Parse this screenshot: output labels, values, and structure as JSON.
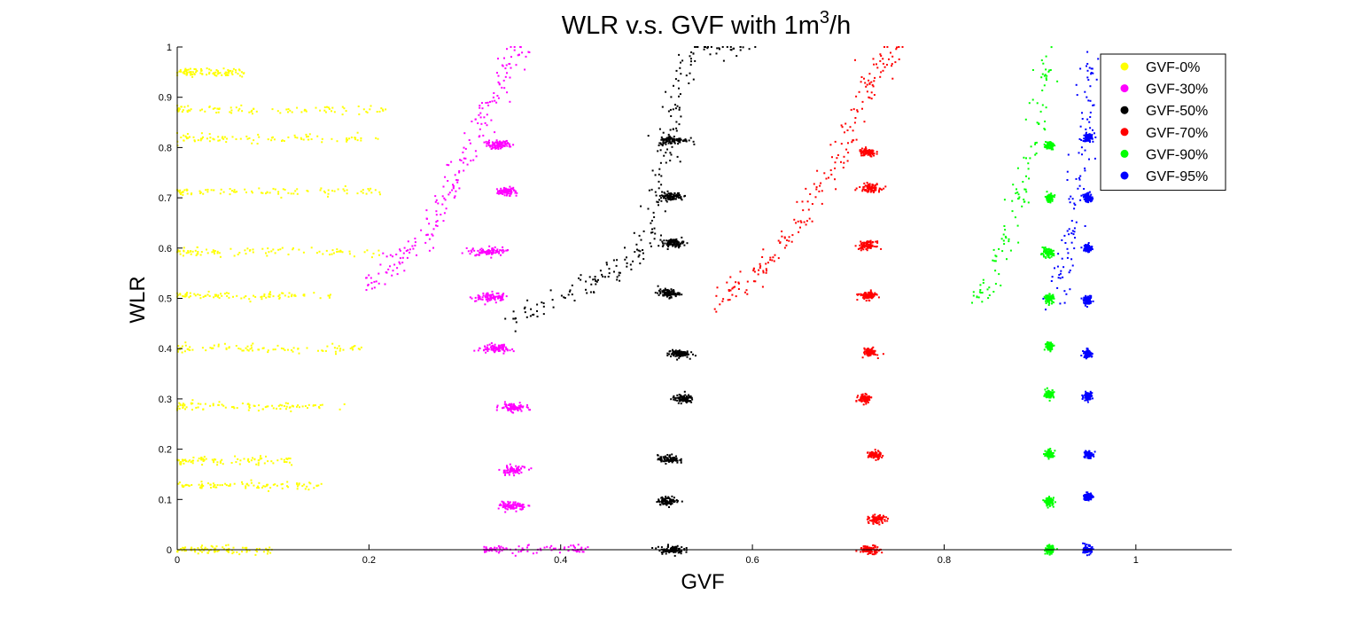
{
  "chart_data": {
    "type": "scatter",
    "title": "WLR v.s. GVF with 1m3/h",
    "title_parts": {
      "main": "WLR v.s. GVF with 1m",
      "superscript": "3",
      "suffix": "/h"
    },
    "xlabel": "GVF",
    "ylabel": "WLR",
    "xlim": [
      0,
      1.1
    ],
    "ylim": [
      0,
      1
    ],
    "x_ticks": [
      "0",
      "0.2",
      "0.4",
      "0.6",
      "0.8",
      "1"
    ],
    "y_ticks": [
      "0",
      "0.1",
      "0.2",
      "0.3",
      "0.4",
      "0.5",
      "0.6",
      "0.7",
      "0.8",
      "0.9",
      "1"
    ],
    "grid": false,
    "legend_position": "top-right",
    "series": [
      {
        "name": "GVF-0%",
        "color": "#ffff00",
        "clusters": [
          {
            "x": [
              0.0,
              0.07
            ],
            "y": 0.95
          },
          {
            "x": [
              0.0,
              0.22
            ],
            "y": 0.875
          },
          {
            "x": [
              0.0,
              0.21
            ],
            "y": 0.818
          },
          {
            "x": [
              0.0,
              0.22
            ],
            "y": 0.712
          },
          {
            "x": [
              0.0,
              0.22
            ],
            "y": 0.592
          },
          {
            "x": [
              0.0,
              0.16
            ],
            "y": 0.505
          },
          {
            "x": [
              0.0,
              0.2
            ],
            "y": 0.4
          },
          {
            "x": [
              0.0,
              0.175
            ],
            "y": 0.285
          },
          {
            "x": [
              0.0,
              0.12
            ],
            "y": 0.177
          },
          {
            "x": [
              0.0,
              0.155
            ],
            "y": 0.128
          },
          {
            "x": [
              0.0,
              0.1
            ],
            "y": 0.0
          }
        ],
        "transition": []
      },
      {
        "name": "GVF-30%",
        "color": "#ff00ff",
        "clusters": [
          {
            "x": [
              0.32,
              0.35
            ],
            "y": 0.805
          },
          {
            "x": [
              0.33,
              0.355
            ],
            "y": 0.713
          },
          {
            "x": [
              0.305,
              0.345
            ],
            "y": 0.593
          },
          {
            "x": [
              0.31,
              0.345
            ],
            "y": 0.503
          },
          {
            "x": [
              0.315,
              0.35
            ],
            "y": 0.4
          },
          {
            "x": [
              0.335,
              0.365
            ],
            "y": 0.283
          },
          {
            "x": [
              0.335,
              0.365
            ],
            "y": 0.158
          },
          {
            "x": [
              0.335,
              0.365
            ],
            "y": 0.087
          },
          {
            "x": [
              0.32,
              0.43
            ],
            "y": 0.0
          }
        ],
        "transition": [
          [
            0.2,
            0.52
          ],
          [
            0.23,
            0.57
          ],
          [
            0.26,
            0.62
          ],
          [
            0.28,
            0.7
          ],
          [
            0.3,
            0.78
          ],
          [
            0.32,
            0.86
          ],
          [
            0.34,
            0.95
          ],
          [
            0.36,
            1.0
          ]
        ]
      },
      {
        "name": "GVF-50%",
        "color": "#000000",
        "clusters": [
          {
            "x": [
              0.5,
              0.535
            ],
            "y": 0.815
          },
          {
            "x": [
              0.5,
              0.53
            ],
            "y": 0.703
          },
          {
            "x": [
              0.505,
              0.53
            ],
            "y": 0.61
          },
          {
            "x": [
              0.5,
              0.525
            ],
            "y": 0.51
          },
          {
            "x": [
              0.51,
              0.535
            ],
            "y": 0.39
          },
          {
            "x": [
              0.515,
              0.54
            ],
            "y": 0.3
          },
          {
            "x": [
              0.5,
              0.525
            ],
            "y": 0.18
          },
          {
            "x": [
              0.5,
              0.525
            ],
            "y": 0.097
          },
          {
            "x": [
              0.5,
              0.53
            ],
            "y": 0.0
          }
        ],
        "transition": [
          [
            0.35,
            0.46
          ],
          [
            0.4,
            0.5
          ],
          [
            0.45,
            0.55
          ],
          [
            0.48,
            0.58
          ],
          [
            0.5,
            0.68
          ],
          [
            0.51,
            0.8
          ],
          [
            0.52,
            0.9
          ],
          [
            0.54,
            1.0
          ],
          [
            0.6,
            1.0
          ]
        ]
      },
      {
        "name": "GVF-70%",
        "color": "#ff0000",
        "clusters": [
          {
            "x": [
              0.71,
              0.73
            ],
            "y": 0.79
          },
          {
            "x": [
              0.71,
              0.735
            ],
            "y": 0.72
          },
          {
            "x": [
              0.71,
              0.73
            ],
            "y": 0.605
          },
          {
            "x": [
              0.71,
              0.73
            ],
            "y": 0.505
          },
          {
            "x": [
              0.715,
              0.73
            ],
            "y": 0.393
          },
          {
            "x": [
              0.71,
              0.725
            ],
            "y": 0.3
          },
          {
            "x": [
              0.72,
              0.735
            ],
            "y": 0.188
          },
          {
            "x": [
              0.72,
              0.74
            ],
            "y": 0.06
          },
          {
            "x": [
              0.71,
              0.735
            ],
            "y": 0.0
          }
        ],
        "transition": [
          [
            0.56,
            0.49
          ],
          [
            0.6,
            0.54
          ],
          [
            0.63,
            0.6
          ],
          [
            0.66,
            0.68
          ],
          [
            0.69,
            0.78
          ],
          [
            0.71,
            0.88
          ],
          [
            0.73,
            0.95
          ],
          [
            0.75,
            1.0
          ]
        ]
      },
      {
        "name": "GVF-90%",
        "color": "#00ff00",
        "clusters": [
          {
            "x": [
              0.905,
              0.915
            ],
            "y": 0.805
          },
          {
            "x": [
              0.905,
              0.915
            ],
            "y": 0.7
          },
          {
            "x": [
              0.9,
              0.915
            ],
            "y": 0.59
          },
          {
            "x": [
              0.905,
              0.915
            ],
            "y": 0.5
          },
          {
            "x": [
              0.905,
              0.915
            ],
            "y": 0.405
          },
          {
            "x": [
              0.905,
              0.915
            ],
            "y": 0.31
          },
          {
            "x": [
              0.905,
              0.915
            ],
            "y": 0.19
          },
          {
            "x": [
              0.905,
              0.915
            ],
            "y": 0.095
          },
          {
            "x": [
              0.905,
              0.915
            ],
            "y": 0.0
          }
        ],
        "transition": [
          [
            0.83,
            0.49
          ],
          [
            0.86,
            0.58
          ],
          [
            0.88,
            0.7
          ],
          [
            0.9,
            0.85
          ],
          [
            0.91,
            1.0
          ]
        ]
      },
      {
        "name": "GVF-95%",
        "color": "#0000ff",
        "clusters": [
          {
            "x": [
              0.945,
              0.955
            ],
            "y": 0.82
          },
          {
            "x": [
              0.945,
              0.955
            ],
            "y": 0.7
          },
          {
            "x": [
              0.945,
              0.955
            ],
            "y": 0.6
          },
          {
            "x": [
              0.945,
              0.955
            ],
            "y": 0.495
          },
          {
            "x": [
              0.945,
              0.955
            ],
            "y": 0.39
          },
          {
            "x": [
              0.945,
              0.955
            ],
            "y": 0.305
          },
          {
            "x": [
              0.945,
              0.955
            ],
            "y": 0.19
          },
          {
            "x": [
              0.945,
              0.955
            ],
            "y": 0.105
          },
          {
            "x": [
              0.945,
              0.955
            ],
            "y": 0.0
          }
        ],
        "transition": [
          [
            0.915,
            0.49
          ],
          [
            0.93,
            0.6
          ],
          [
            0.94,
            0.72
          ],
          [
            0.95,
            0.85
          ],
          [
            0.955,
            1.0
          ]
        ]
      }
    ]
  }
}
